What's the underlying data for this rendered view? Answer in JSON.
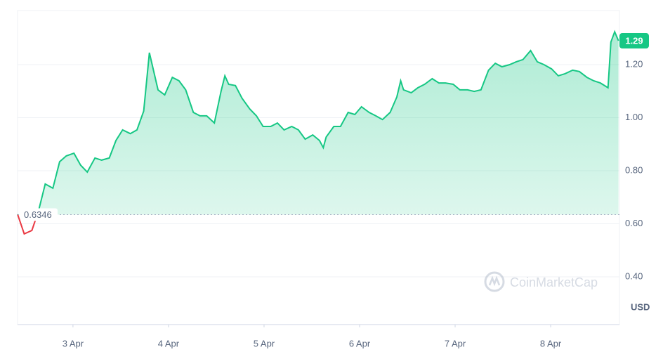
{
  "chart_data": {
    "type": "line",
    "x": [
      -0.58,
      -0.51,
      -0.43,
      -0.36,
      -0.29,
      -0.21,
      -0.14,
      -0.07,
      0.01,
      0.08,
      0.15,
      0.23,
      0.3,
      0.38,
      0.45,
      0.52,
      0.6,
      0.67,
      0.74,
      0.8,
      0.89,
      0.96,
      1.04,
      1.11,
      1.18,
      1.26,
      1.33,
      1.4,
      1.48,
      1.55,
      1.59,
      1.63,
      1.7,
      1.77,
      1.85,
      1.92,
      1.99,
      2.07,
      2.14,
      2.21,
      2.29,
      2.36,
      2.43,
      2.51,
      2.58,
      2.62,
      2.65,
      2.73,
      2.8,
      2.88,
      2.95,
      3.02,
      3.1,
      3.17,
      3.24,
      3.32,
      3.39,
      3.43,
      3.46,
      3.54,
      3.61,
      3.68,
      3.76,
      3.83,
      3.9,
      3.98,
      4.05,
      4.13,
      4.2,
      4.27,
      4.35,
      4.42,
      4.49,
      4.57,
      4.64,
      4.71,
      4.79,
      4.86,
      4.93,
      5.01,
      5.08,
      5.15,
      5.23,
      5.3,
      5.38,
      5.45,
      5.52,
      5.6,
      5.63,
      5.67,
      5.71
    ],
    "values": [
      0.636,
      0.562,
      0.575,
      0.649,
      0.75,
      0.734,
      0.834,
      0.856,
      0.866,
      0.821,
      0.795,
      0.848,
      0.84,
      0.848,
      0.914,
      0.954,
      0.94,
      0.954,
      1.025,
      1.245,
      1.105,
      1.086,
      1.152,
      1.139,
      1.105,
      1.02,
      1.007,
      1.007,
      0.98,
      1.099,
      1.158,
      1.126,
      1.121,
      1.073,
      1.033,
      1.007,
      0.967,
      0.967,
      0.98,
      0.954,
      0.967,
      0.954,
      0.919,
      0.935,
      0.914,
      0.887,
      0.927,
      0.967,
      0.967,
      1.02,
      1.012,
      1.041,
      1.02,
      1.007,
      0.993,
      1.02,
      1.078,
      1.139,
      1.105,
      1.094,
      1.113,
      1.126,
      1.147,
      1.131,
      1.131,
      1.126,
      1.105,
      1.105,
      1.099,
      1.105,
      1.179,
      1.205,
      1.192,
      1.2,
      1.211,
      1.219,
      1.253,
      1.211,
      1.2,
      1.184,
      1.158,
      1.166,
      1.179,
      1.174,
      1.152,
      1.139,
      1.131,
      1.113,
      1.285,
      1.324,
      1.29
    ],
    "color": "#16c784",
    "below_color": "#ea3943",
    "baseline": 0.6346,
    "current_price": 1.29,
    "xlim": [
      -0.58,
      5.72
    ],
    "xticks": [
      {
        "value": 0,
        "label": "3 Apr"
      },
      {
        "value": 1,
        "label": "4 Apr"
      },
      {
        "value": 2,
        "label": "5 Apr"
      },
      {
        "value": 3,
        "label": "6 Apr"
      },
      {
        "value": 4,
        "label": "7 Apr"
      },
      {
        "value": 5,
        "label": "8 Apr"
      }
    ],
    "ylim": [
      0.22,
      1.404
    ],
    "yticks": [
      {
        "value": 0.4,
        "label": "0.40"
      },
      {
        "value": 0.6,
        "label": "0.60"
      },
      {
        "value": 0.8,
        "label": "0.80"
      },
      {
        "value": 1.0,
        "label": "1.00"
      },
      {
        "value": 1.2,
        "label": "1.20"
      }
    ],
    "grid": true,
    "currency": "USD",
    "watermark": "CoinMarketCap"
  }
}
